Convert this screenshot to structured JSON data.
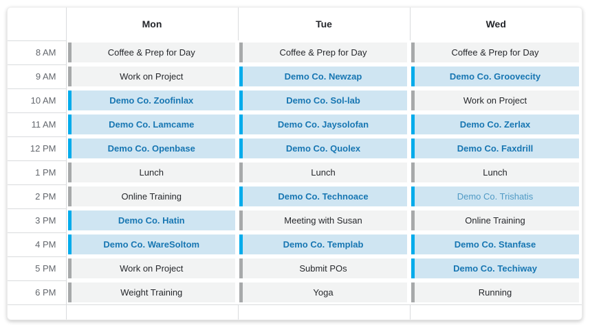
{
  "header": {
    "days": [
      "Mon",
      "Tue",
      "Wed"
    ]
  },
  "colors": {
    "demo_accent": "#00abeb",
    "demo_background": "#cfe5f2",
    "demo_text": "#1776b2",
    "demo_light_text": "#4f99c4",
    "normal_accent": "#a7a9aa",
    "normal_background": "#f2f3f3",
    "normal_text": "#25272b",
    "grid_border": "#d9dbdd"
  },
  "rows": [
    {
      "time": "8 AM",
      "events": [
        {
          "label": "Coffee & Prep for Day",
          "type": "normal"
        },
        {
          "label": "Coffee & Prep for Day",
          "type": "normal"
        },
        {
          "label": "Coffee & Prep for Day",
          "type": "normal"
        }
      ]
    },
    {
      "time": "9 AM",
      "events": [
        {
          "label": "Work on Project",
          "type": "normal"
        },
        {
          "label": "Demo Co. Newzap",
          "type": "demo"
        },
        {
          "label": "Demo Co. Groovecity",
          "type": "demo"
        }
      ]
    },
    {
      "time": "10 AM",
      "events": [
        {
          "label": "Demo Co. Zoofinlax",
          "type": "demo"
        },
        {
          "label": "Demo Co. Sol-lab",
          "type": "demo"
        },
        {
          "label": "Work on Project",
          "type": "normal"
        }
      ]
    },
    {
      "time": "11 AM",
      "events": [
        {
          "label": "Demo Co. Lamcame",
          "type": "demo"
        },
        {
          "label": "Demo Co. Jaysolofan",
          "type": "demo"
        },
        {
          "label": "Demo Co. Zerlax",
          "type": "demo"
        }
      ]
    },
    {
      "time": "12 PM",
      "events": [
        {
          "label": "Demo Co. Openbase",
          "type": "demo"
        },
        {
          "label": "Demo Co. Quolex",
          "type": "demo"
        },
        {
          "label": "Demo Co. Faxdrill",
          "type": "demo"
        }
      ]
    },
    {
      "time": "1 PM",
      "events": [
        {
          "label": "Lunch",
          "type": "normal"
        },
        {
          "label": "Lunch",
          "type": "normal"
        },
        {
          "label": "Lunch",
          "type": "normal"
        }
      ]
    },
    {
      "time": "2 PM",
      "events": [
        {
          "label": "Online Training",
          "type": "normal"
        },
        {
          "label": "Demo Co. Technoace",
          "type": "demo"
        },
        {
          "label": "Demo Co. Trishatis",
          "type": "demo_light"
        }
      ]
    },
    {
      "time": "3 PM",
      "events": [
        {
          "label": "Demo Co. Hatin",
          "type": "demo"
        },
        {
          "label": "Meeting with Susan",
          "type": "normal"
        },
        {
          "label": "Online Training",
          "type": "normal"
        }
      ]
    },
    {
      "time": "4 PM",
      "events": [
        {
          "label": "Demo Co. WareSoltom",
          "type": "demo"
        },
        {
          "label": "Demo Co. Templab",
          "type": "demo"
        },
        {
          "label": "Demo Co. Stanfase",
          "type": "demo"
        }
      ]
    },
    {
      "time": "5 PM",
      "events": [
        {
          "label": "Work on Project",
          "type": "normal"
        },
        {
          "label": "Submit POs",
          "type": "normal"
        },
        {
          "label": "Demo Co. Techiway",
          "type": "demo"
        }
      ]
    },
    {
      "time": "6 PM",
      "events": [
        {
          "label": "Weight Training",
          "type": "normal"
        },
        {
          "label": "Yoga",
          "type": "normal"
        },
        {
          "label": "Running",
          "type": "normal"
        }
      ]
    }
  ]
}
